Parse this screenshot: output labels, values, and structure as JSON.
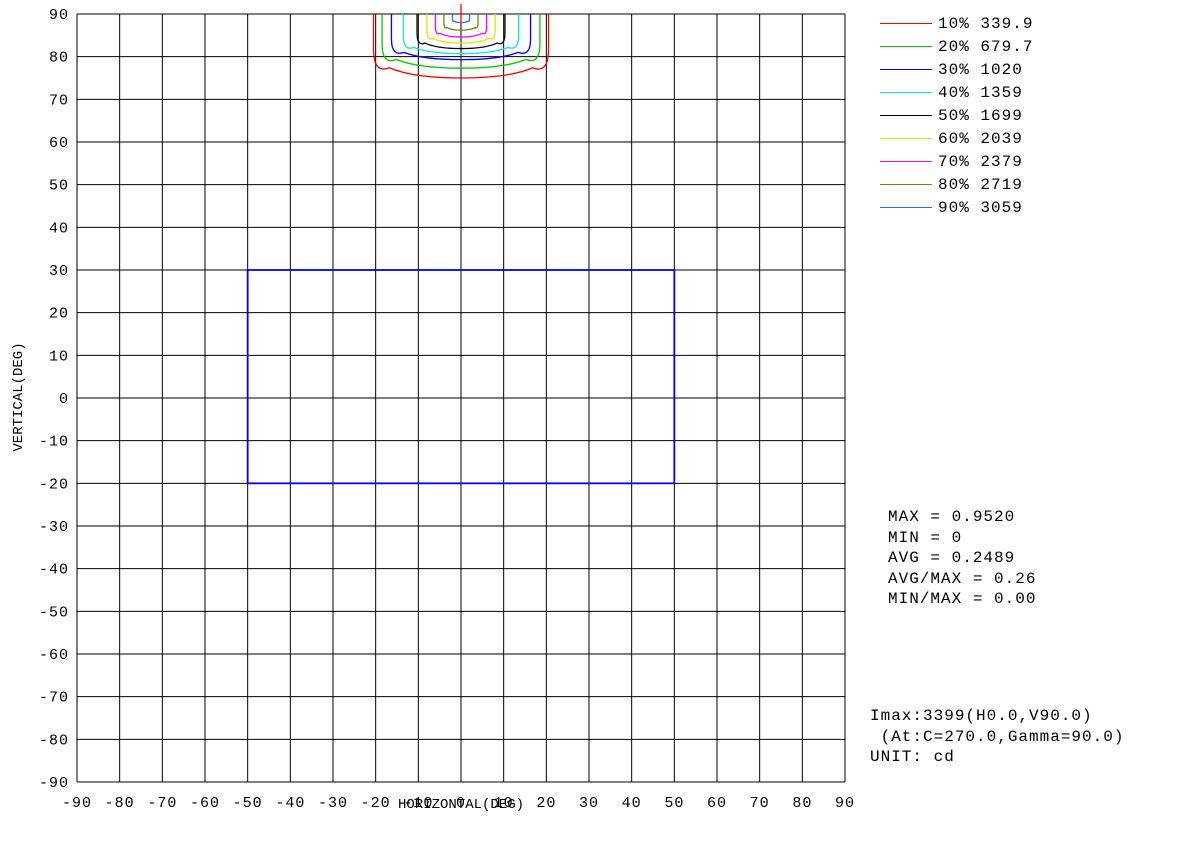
{
  "chart_data": {
    "type": "contour",
    "xlabel": "HORIZONTAL(DEG)",
    "ylabel": "VERTICAL(DEG)",
    "xlim": [
      -90,
      90
    ],
    "ylim": [
      -90,
      90
    ],
    "x_ticks": [
      "-90",
      "-80",
      "-70",
      "-60",
      "-50",
      "-40",
      "-30",
      "-20",
      "-10",
      "0",
      "10",
      "20",
      "30",
      "40",
      "50",
      "60",
      "70",
      "80",
      "90"
    ],
    "y_ticks": [
      "90",
      "80",
      "70",
      "60",
      "50",
      "40",
      "30",
      "20",
      "10",
      "0",
      "-10",
      "-20",
      "-30",
      "-40",
      "-50",
      "-60",
      "-70",
      "-80",
      "-90"
    ],
    "grid": true,
    "legend_position": "top-right",
    "series": [
      {
        "name": "10% 339.9",
        "color": "#ff0000",
        "half_width": 20.5,
        "bottom": 75.0
      },
      {
        "name": "20% 679.7",
        "color": "#00cc00",
        "half_width": 18.5,
        "bottom": 77.3
      },
      {
        "name": "30% 1020",
        "color": "#0000ff",
        "half_width": 16.3,
        "bottom": 79.3
      },
      {
        "name": "40% 1359",
        "color": "#00e5e5",
        "half_width": 13.5,
        "bottom": 80.7
      },
      {
        "name": "50% 1699",
        "color": "#000000",
        "half_width": 10.3,
        "bottom": 81.9
      },
      {
        "name": "60% 2039",
        "color": "#e5e500",
        "half_width": 8.0,
        "bottom": 83.2
      },
      {
        "name": "70% 2379",
        "color": "#ff00ff",
        "half_width": 6.0,
        "bottom": 84.6
      },
      {
        "name": "80% 2719",
        "color": "#808000",
        "half_width": 4.0,
        "bottom": 86.2
      },
      {
        "name": "90% 3059",
        "color": "#1a7fd4",
        "half_width": 2.0,
        "bottom": 88.0
      }
    ],
    "rectangle": {
      "x": [
        -50,
        50
      ],
      "y": [
        -20,
        30
      ],
      "color": "#0000ff"
    },
    "marker": {
      "x": 0,
      "y": 90,
      "color": "#ff0000"
    }
  },
  "stats": [
    "MAX = 0.9520",
    "MIN = 0",
    "AVG = 0.2489",
    "AVG/MAX = 0.26",
    "MIN/MAX = 0.00"
  ],
  "info": {
    "imax": "Imax:3399(H0.0,V90.0)",
    "at": " (At:C=270.0,Gamma=90.0)",
    "unit": "UNIT: cd"
  }
}
